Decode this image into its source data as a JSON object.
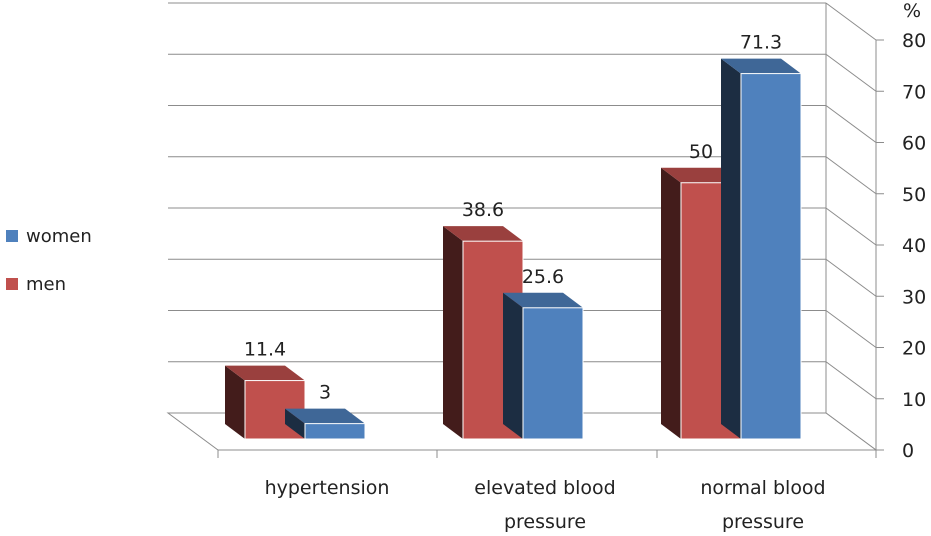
{
  "chart_data": {
    "type": "bar",
    "categories": [
      [
        "hypertension"
      ],
      [
        "elevated blood",
        "pressure"
      ],
      [
        "normal blood",
        "pressure"
      ]
    ],
    "series": [
      {
        "name": "men",
        "values": [
          11.4,
          38.6,
          50
        ],
        "color": "#c0504d"
      },
      {
        "name": "women",
        "values": [
          3,
          25.6,
          71.3
        ],
        "color": "#4f81bd"
      }
    ],
    "data_labels": {
      "men": [
        "11.4",
        "38.6",
        "50"
      ],
      "women": [
        "3",
        "25.6",
        "71.3"
      ]
    },
    "ylim": [
      0,
      80
    ],
    "yticks": [
      0,
      10,
      20,
      30,
      40,
      50,
      60,
      70,
      80
    ],
    "y_unit": "%",
    "grid": true,
    "legend_position": "left",
    "style": "3d-clustered-column"
  },
  "legend": [
    {
      "label": "women",
      "color": "#4f81bd"
    },
    {
      "label": "men",
      "color": "#c0504d"
    }
  ]
}
